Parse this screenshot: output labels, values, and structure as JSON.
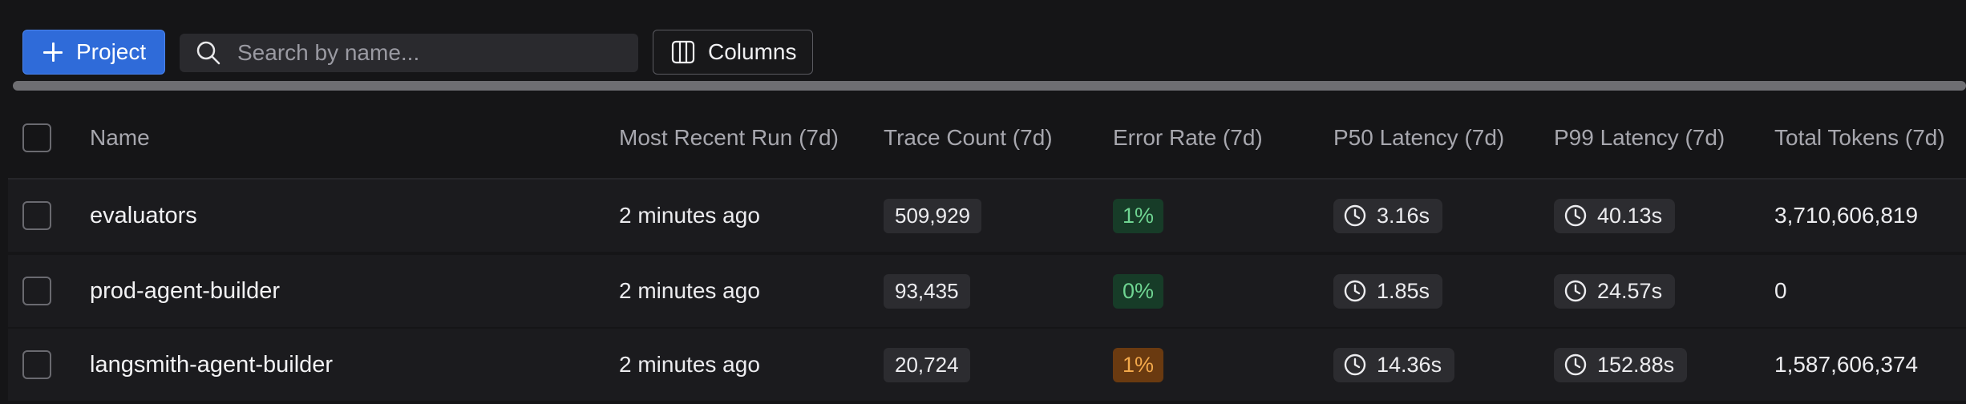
{
  "toolbar": {
    "project_label": "Project",
    "search_placeholder": "Search by name...",
    "columns_label": "Columns"
  },
  "icons": {
    "plus": "plus-icon",
    "search": "search-icon",
    "columns": "columns-icon",
    "clock": "clock-icon"
  },
  "colors": {
    "accent": "#2f6bd9",
    "error_ok_bg": "#173c28",
    "error_ok_text": "#6fd592",
    "error_warn_bg": "#6a3a10",
    "error_warn_text": "#f3a94b"
  },
  "table": {
    "headers": {
      "name": "Name",
      "recent": "Most Recent Run (7d)",
      "trace": "Trace Count (7d)",
      "error": "Error Rate (7d)",
      "p50": "P50 Latency (7d)",
      "p99": "P99 Latency (7d)",
      "tokens": "Total Tokens (7d)"
    },
    "rows": [
      {
        "name": "evaluators",
        "recent": "2 minutes ago",
        "trace": "509,929",
        "error": "1%",
        "error_status": "ok",
        "p50": "3.16s",
        "p99": "40.13s",
        "tokens": "3,710,606,819"
      },
      {
        "name": "prod-agent-builder",
        "recent": "2 minutes ago",
        "trace": "93,435",
        "error": "0%",
        "error_status": "ok",
        "p50": "1.85s",
        "p99": "24.57s",
        "tokens": "0"
      },
      {
        "name": "langsmith-agent-builder",
        "recent": "2 minutes ago",
        "trace": "20,724",
        "error": "1%",
        "error_status": "warn",
        "p50": "14.36s",
        "p99": "152.88s",
        "tokens": "1,587,606,374"
      }
    ]
  }
}
